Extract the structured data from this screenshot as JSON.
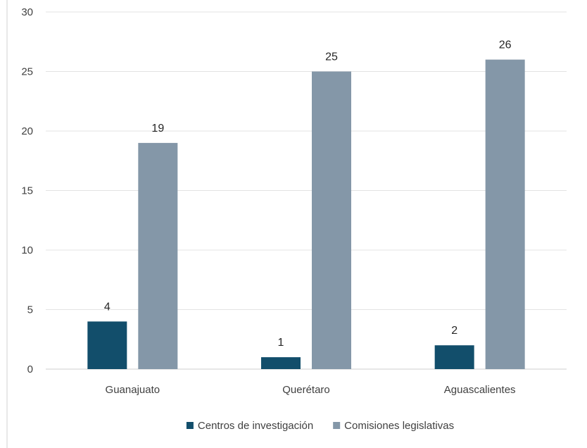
{
  "chart_data": {
    "type": "bar",
    "categories": [
      "Guanajuato",
      "Querétaro",
      "Aguascalientes"
    ],
    "series": [
      {
        "name": "Centros de investigación",
        "values": [
          4,
          1,
          2
        ],
        "color": "#124e6b"
      },
      {
        "name": "Comisiones legislativas",
        "values": [
          19,
          25,
          26
        ],
        "color": "#8497a8"
      }
    ],
    "ylim": [
      0,
      30
    ],
    "yticks": [
      0,
      5,
      10,
      15,
      20,
      25,
      30
    ],
    "grid": true,
    "legend": "bottom",
    "data_labels": true
  }
}
